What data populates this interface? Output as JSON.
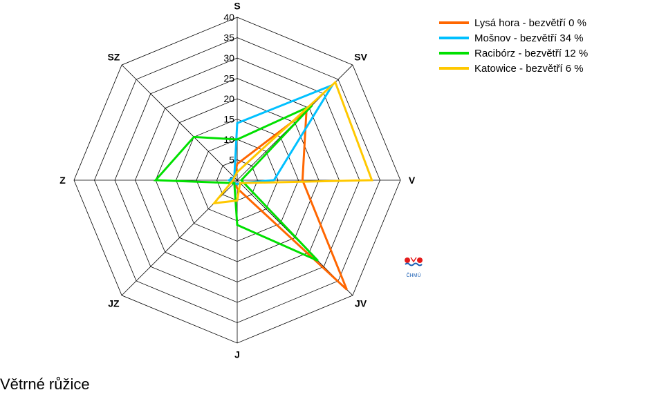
{
  "caption": "Větrné růžice",
  "logo_text": "ČHMÚ",
  "chart_data": {
    "type": "radar",
    "directions": [
      "S",
      "SV",
      "V",
      "JV",
      "J",
      "JZ",
      "Z",
      "SZ"
    ],
    "rlim": [
      0,
      40
    ],
    "ticks": [
      0,
      5,
      10,
      15,
      20,
      25,
      30,
      35,
      40
    ],
    "grid": true,
    "legend_position": "top-right",
    "series": [
      {
        "name": "Lysá hora - bezvětří 0 %",
        "color": "#ff6600",
        "values": [
          4,
          24,
          16,
          38,
          2,
          1,
          1,
          1
        ]
      },
      {
        "name": "Mošnov - bezvětří 34 %",
        "color": "#00c0ff",
        "values": [
          14,
          33,
          9,
          1,
          1,
          1,
          2,
          1
        ]
      },
      {
        "name": "Racibórz - bezvětří 12 %",
        "color": "#00e000",
        "values": [
          10,
          26,
          1,
          28,
          11,
          1,
          20,
          15
        ]
      },
      {
        "name": "Katowice - bezvětří 6 %",
        "color": "#ffc800",
        "values": [
          2,
          34,
          33,
          1,
          5,
          8,
          1,
          1
        ]
      }
    ]
  }
}
